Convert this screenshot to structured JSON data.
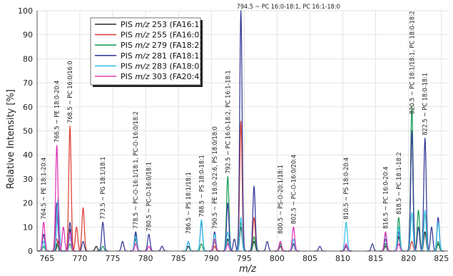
{
  "chart_data": {
    "type": "line",
    "xlabel": "m/z",
    "ylabel": "Relative Intensity [%]",
    "xlim": [
      763.5,
      826
    ],
    "ylim": [
      0,
      100
    ],
    "xticks": [
      765,
      770,
      775,
      780,
      785,
      790,
      795,
      800,
      805,
      810,
      815,
      820,
      825
    ],
    "yticks": [
      0,
      10,
      20,
      30,
      40,
      50,
      60,
      70,
      80,
      90,
      100
    ],
    "legend_position": "top-left",
    "series": [
      {
        "name": "PIS m/z 253 (FA16:1)",
        "legend_prefix": "PIS ",
        "legend_italic": "m/z",
        "legend_suffix": " 253 (FA16:1)",
        "color": "#2b2b2b",
        "peaks": [
          [
            764.5,
            2
          ],
          [
            766.7,
            4
          ],
          [
            768.5,
            9
          ],
          [
            772.5,
            2
          ],
          [
            778.5,
            5
          ],
          [
            786.5,
            2
          ],
          [
            790.5,
            2
          ],
          [
            792.5,
            5
          ],
          [
            794.5,
            10
          ],
          [
            796.5,
            4
          ],
          [
            800.5,
            2
          ],
          [
            802.5,
            3
          ],
          [
            810.5,
            2
          ],
          [
            816.5,
            2
          ],
          [
            818.5,
            6
          ],
          [
            820.5,
            50
          ],
          [
            822.5,
            8
          ],
          [
            824.5,
            3
          ]
        ]
      },
      {
        "name": "PIS m/z 255 (FA16:0)",
        "legend_prefix": "PIS ",
        "legend_italic": "m/z",
        "legend_suffix": " 255 (FA16:0)",
        "color": "#e0453c",
        "peaks": [
          [
            766.5,
            5
          ],
          [
            768.5,
            52
          ],
          [
            769.5,
            10
          ],
          [
            770.5,
            18
          ],
          [
            778.5,
            3
          ],
          [
            790.5,
            2
          ],
          [
            794.5,
            54
          ],
          [
            796.5,
            14
          ],
          [
            802.5,
            3
          ],
          [
            816.5,
            3
          ],
          [
            820.5,
            4
          ]
        ]
      },
      {
        "name": "PIS m/z 279 (FA18:2)",
        "legend_prefix": "PIS ",
        "legend_italic": "m/z",
        "legend_suffix": " 279 (FA18:2)",
        "color": "#22a05c",
        "peaks": [
          [
            764.5,
            2
          ],
          [
            766.5,
            3
          ],
          [
            768.5,
            3
          ],
          [
            773.5,
            2
          ],
          [
            778.5,
            7
          ],
          [
            788.5,
            3
          ],
          [
            790.5,
            4
          ],
          [
            792.5,
            31
          ],
          [
            794.5,
            12
          ],
          [
            796.5,
            6
          ],
          [
            800.5,
            3
          ],
          [
            810.5,
            2
          ],
          [
            816.5,
            3
          ],
          [
            818.5,
            14
          ],
          [
            820.5,
            60
          ],
          [
            821.5,
            17
          ],
          [
            822.5,
            16
          ],
          [
            824.5,
            4
          ]
        ]
      },
      {
        "name": "PIS m/z 281 (FA18:1)",
        "legend_prefix": "PIS ",
        "legend_italic": "m/z",
        "legend_suffix": " 281 (FA18:1)",
        "color": "#3a3f9a",
        "peaks": [
          [
            764.5,
            7
          ],
          [
            766.5,
            20
          ],
          [
            768.5,
            12
          ],
          [
            770.5,
            4
          ],
          [
            773.5,
            12
          ],
          [
            776.5,
            4
          ],
          [
            778.5,
            8
          ],
          [
            780.5,
            7
          ],
          [
            782.5,
            2
          ],
          [
            786.5,
            4
          ],
          [
            788.5,
            12
          ],
          [
            790.5,
            8
          ],
          [
            792.5,
            20
          ],
          [
            793.5,
            5
          ],
          [
            794.5,
            100
          ],
          [
            796.5,
            27
          ],
          [
            798.5,
            4
          ],
          [
            800.5,
            4
          ],
          [
            802.5,
            3
          ],
          [
            806.5,
            2
          ],
          [
            810.5,
            2
          ],
          [
            814.5,
            3
          ],
          [
            816.5,
            5
          ],
          [
            818.5,
            8
          ],
          [
            820.5,
            50
          ],
          [
            821.5,
            10
          ],
          [
            822.5,
            47
          ],
          [
            823.5,
            10
          ],
          [
            824.5,
            14
          ]
        ]
      },
      {
        "name": "PIS m/z 283 (FA18:0)",
        "legend_prefix": "PIS ",
        "legend_italic": "m/z",
        "legend_suffix": " 283 (FA18:0)",
        "color": "#3cc3e8",
        "peaks": [
          [
            764.5,
            4
          ],
          [
            766.7,
            22
          ],
          [
            768.5,
            6
          ],
          [
            778.5,
            6
          ],
          [
            786.5,
            4
          ],
          [
            788.5,
            13
          ],
          [
            790.5,
            7
          ],
          [
            792.5,
            8
          ],
          [
            794.5,
            14
          ],
          [
            802.5,
            5
          ],
          [
            810.5,
            12
          ],
          [
            816.5,
            7
          ],
          [
            818.5,
            10
          ],
          [
            820.5,
            16
          ],
          [
            822.5,
            17
          ],
          [
            824.5,
            12
          ]
        ]
      },
      {
        "name": "PIS m/z 303 (FA20:4)",
        "legend_prefix": "PIS ",
        "legend_italic": "m/z",
        "legend_suffix": " 303 (FA20:4)",
        "color": "#e03ab6",
        "peaks": [
          [
            764.5,
            12
          ],
          [
            766.5,
            44
          ],
          [
            767.5,
            10
          ],
          [
            768.5,
            8
          ],
          [
            778.5,
            3
          ],
          [
            780.5,
            2
          ],
          [
            790.5,
            5
          ],
          [
            792.5,
            3
          ],
          [
            800.5,
            4
          ],
          [
            802.5,
            10
          ],
          [
            810.5,
            3
          ],
          [
            816.5,
            8
          ],
          [
            818.5,
            3
          ]
        ]
      }
    ],
    "annotations": [
      {
        "x": 764.5,
        "text": "764.5 ~ PE 18:1-20:4"
      },
      {
        "x": 766.5,
        "text": "766.5 ~ PE 18:0-20:4"
      },
      {
        "x": 768.5,
        "text": "768.5 ~ PC 16:0/16:0"
      },
      {
        "x": 773.5,
        "text": "773.5 ~ PG 18:1/18:1"
      },
      {
        "x": 778.5,
        "text": "778.5 ~ PC-O-16:1/18:1, PC-O-16:0/18:2"
      },
      {
        "x": 780.5,
        "text": "780.5 ~ PC-O-16:0/18:1"
      },
      {
        "x": 786.5,
        "text": "786.5 ~ PS 18:1/18:1"
      },
      {
        "x": 788.5,
        "text": "788.5 ~ PS 18:0-18:1"
      },
      {
        "x": 790.5,
        "text": "790.5 ~ PE 18:0-22:6, PS 18:0/18:0"
      },
      {
        "x": 792.5,
        "text": "792.5 ~ PC 16:0-18:2, PC 16:1-18:1"
      },
      {
        "x": 794.5,
        "text": "794.5 ~ PC 16:0-18:1, PC 16:1-18:0",
        "horizontal": true
      },
      {
        "x": 800.5,
        "text": "800.5 ~ PS-O-20:1/18:1"
      },
      {
        "x": 802.5,
        "text": "802.5 ~ PC-O-16:0/20:4"
      },
      {
        "x": 810.5,
        "text": "810.5 ~ PS 18:0-20:4"
      },
      {
        "x": 816.5,
        "text": "816.5 ~ PC 16:0-20:4"
      },
      {
        "x": 818.5,
        "text": "818.5 ~ PC 18:1-18:2"
      },
      {
        "x": 820.5,
        "text": "820.5 ~ PC 18:1/18:1, PC 18:0-18:2"
      },
      {
        "x": 822.5,
        "text": "822.5 ~ PC 18:0-18:1"
      }
    ]
  }
}
